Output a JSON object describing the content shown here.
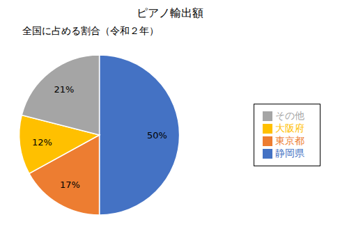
{
  "chart_data": {
    "type": "pie",
    "title": "ピアノ輸出額",
    "subtitle": "全国に占める割合（令和２年）",
    "categories": [
      "静岡県",
      "東京都",
      "大阪府",
      "その他"
    ],
    "values": [
      50,
      17,
      12,
      21
    ],
    "value_labels": [
      "50%",
      "17%",
      "12%",
      "21%"
    ],
    "colors": [
      "#4472C4",
      "#ED7D31",
      "#FFC000",
      "#A5A5A5"
    ],
    "data_labels": true,
    "legend": "right"
  }
}
